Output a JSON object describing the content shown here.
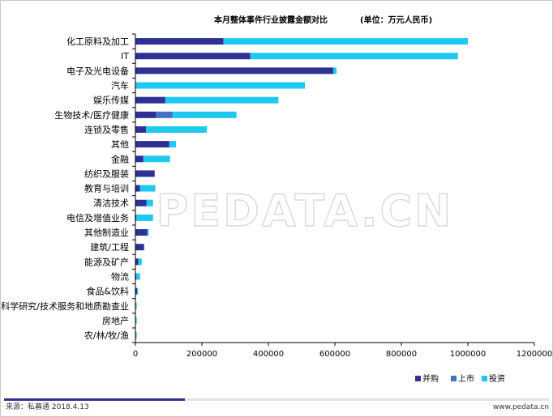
{
  "chart_data": {
    "type": "bar",
    "orientation": "horizontal",
    "stacked": true,
    "title": "本月整体事件行业披露金额对比",
    "unit_note": "(单位：万元人民币)",
    "categories": [
      "化工原料及加工",
      "IT",
      "电子及光电设备",
      "汽车",
      "娱乐传媒",
      "生物技术/医疗健康",
      "连锁及零售",
      "其他",
      "金融",
      "纺织及服装",
      "教育与培训",
      "清洁技术",
      "电信及增值业务",
      "其他制造业",
      "建筑/工程",
      "能源及矿产",
      "物流",
      "食品&饮料",
      "科学研究/技术服务和地质勘查业",
      "房地产",
      "农/林/牧/渔"
    ],
    "series": [
      {
        "name": "并购",
        "color": "#2e3192",
        "values": [
          265000,
          345000,
          595000,
          2000,
          90000,
          62000,
          32000,
          102000,
          24000,
          58000,
          14000,
          33000,
          3000,
          36000,
          26000,
          9000,
          3000,
          5000,
          2000,
          2000,
          2000
        ]
      },
      {
        "name": "上市",
        "color": "#4472c4",
        "values": [
          0,
          0,
          0,
          0,
          0,
          50000,
          0,
          0,
          0,
          0,
          0,
          0,
          0,
          0,
          0,
          0,
          0,
          0,
          0,
          0,
          0
        ]
      },
      {
        "name": "投资",
        "color": "#1ec9ef",
        "values": [
          735000,
          625000,
          10000,
          508000,
          340000,
          192000,
          183000,
          20000,
          80000,
          0,
          46000,
          20000,
          50000,
          4000,
          0,
          10000,
          11000,
          3000,
          2000,
          2000,
          2000
        ]
      }
    ],
    "xlim": [
      0,
      1200000
    ],
    "xticks": [
      0,
      200000,
      400000,
      600000,
      800000,
      1000000,
      1200000
    ],
    "grid": false,
    "legend_position": "bottom-right"
  },
  "watermark": "PEDATA.CN",
  "footer": {
    "source": "来源：私募通   2018.4.13",
    "url": "www.pedata.cn"
  },
  "colors": {
    "footer_bar_dark": "#2e3192",
    "footer_bar_light": "#e3e3e3"
  }
}
